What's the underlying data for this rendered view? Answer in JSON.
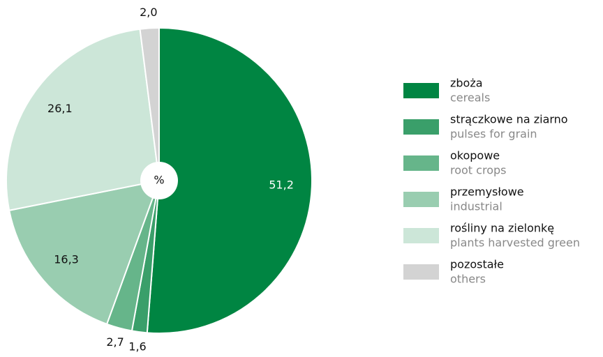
{
  "chart_data": {
    "type": "pie",
    "unit": "%",
    "categories": [
      "zboża",
      "strączkowe na ziarno",
      "okopowe",
      "przemysłowe",
      "rośliny na zielonkę",
      "pozostałe"
    ],
    "categories_en": [
      "cereals",
      "pulses for grain",
      "root crops",
      "industrial",
      "plants harvested green",
      "others"
    ],
    "values": [
      51.2,
      1.6,
      2.7,
      16.3,
      26.1,
      2.0
    ],
    "value_labels": [
      "51,2",
      "1,6",
      "2,7",
      "16,3",
      "26,1",
      "2,0"
    ],
    "colors": [
      "#008542",
      "#3a9f6a",
      "#66b58a",
      "#99cdb0",
      "#cce6d8",
      "#d3d3d3"
    ]
  }
}
